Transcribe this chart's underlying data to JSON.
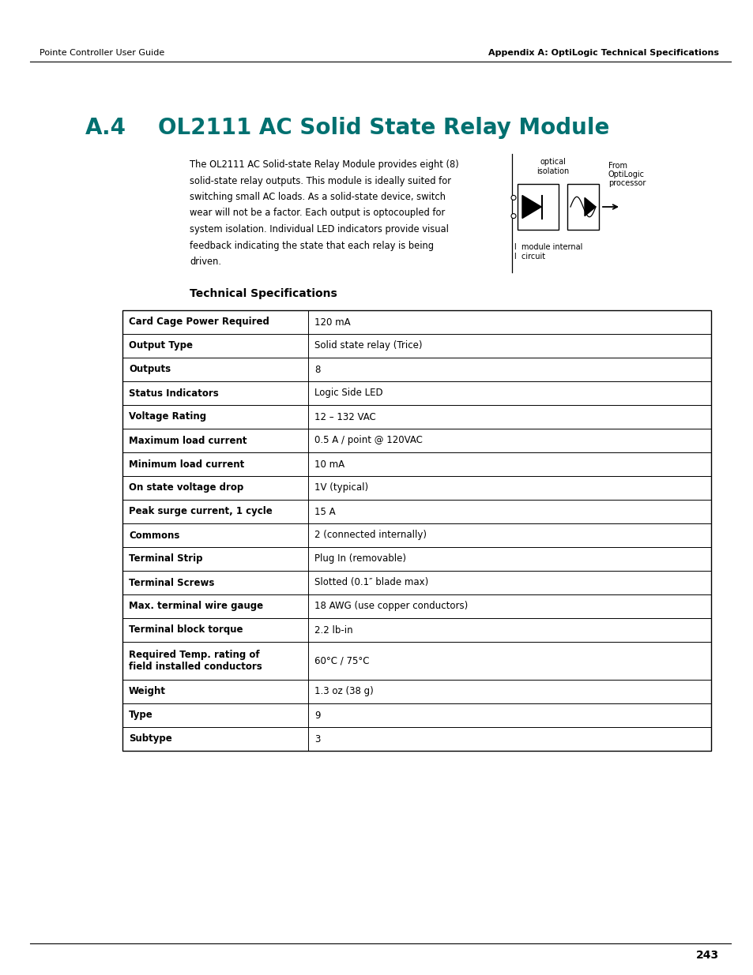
{
  "header_left": "Pointe Controller User Guide",
  "header_right": "Appendix A: OptiLogic Technical Specifications",
  "title_prefix": "A.4",
  "title_text": "OL2111 AC Solid State Relay Module",
  "title_color": "#007070",
  "body_text_lines": [
    "The OL2111 AC Solid-state Relay Module provides eight (8)",
    "solid-state relay outputs. This module is ideally suited for",
    "switching small AC loads. As a solid-state device, switch",
    "wear will not be a factor. Each output is optocoupled for",
    "system isolation. Individual LED indicators provide visual",
    "feedback indicating the state that each relay is being",
    "driven."
  ],
  "tech_spec_heading": "Technical Specifications",
  "table_rows": [
    [
      "Card Cage Power Required",
      "120 mA"
    ],
    [
      "Output Type",
      "Solid state relay (Trice)"
    ],
    [
      "Outputs",
      "8"
    ],
    [
      "Status Indicators",
      "Logic Side LED"
    ],
    [
      "Voltage Rating",
      "12 – 132 VAC"
    ],
    [
      "Maximum load current",
      "0.5 A / point @ 120VAC"
    ],
    [
      "Minimum load current",
      "10 mA"
    ],
    [
      "On state voltage drop",
      "1V (typical)"
    ],
    [
      "Peak surge current, 1 cycle",
      "15 A"
    ],
    [
      "Commons",
      "2 (connected internally)"
    ],
    [
      "Terminal Strip",
      "Plug In (removable)"
    ],
    [
      "Terminal Screws",
      "Slotted (0.1″ blade max)"
    ],
    [
      "Max. terminal wire gauge",
      "18 AWG (use copper conductors)"
    ],
    [
      "Terminal block torque",
      "2.2 lb-in"
    ],
    [
      "Required Temp. rating of\nfield installed conductors",
      "60°C / 75°C"
    ],
    [
      "Weight",
      "1.3 oz (38 g)"
    ],
    [
      "Type",
      "9"
    ],
    [
      "Subtype",
      "3"
    ]
  ],
  "page_number": "243",
  "bg_color": "#ffffff"
}
